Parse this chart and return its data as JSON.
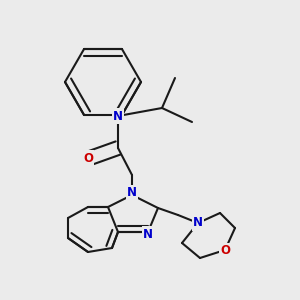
{
  "bg_color": "#ebebeb",
  "bond_color": "#1a1a1a",
  "N_color": "#0000cc",
  "O_color": "#cc0000",
  "lw": 1.5,
  "dbo": 0.008,
  "fs": 8.5,
  "figsize": [
    3.0,
    3.0
  ],
  "dpi": 100,
  "xlim": [
    0,
    300
  ],
  "ylim": [
    0,
    300
  ]
}
